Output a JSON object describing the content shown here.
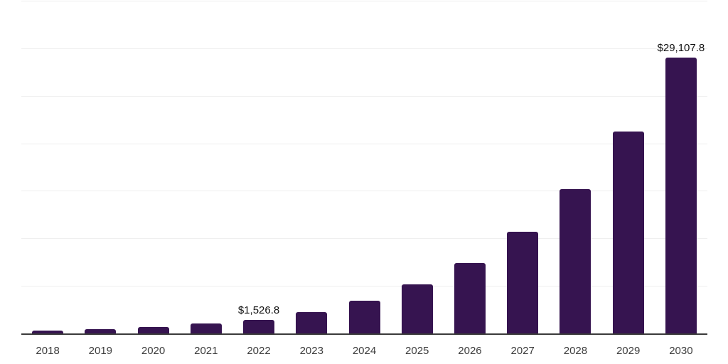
{
  "chart_data": {
    "type": "bar",
    "title": "",
    "xlabel": "",
    "ylabel": "",
    "categories": [
      "2018",
      "2019",
      "2020",
      "2021",
      "2022",
      "2023",
      "2024",
      "2025",
      "2026",
      "2027",
      "2028",
      "2029",
      "2030"
    ],
    "values": [
      370,
      560,
      750,
      1090,
      1526.8,
      2320,
      3520,
      5230,
      7480,
      10790,
      15260,
      21310,
      29107.8
    ],
    "labeled_values": {
      "2022": 1526.8,
      "2030": 29107.8
    },
    "data_labels": {
      "2022": "$1,526.8",
      "2030": "$29,107.8"
    },
    "ylim": [
      0,
      35000
    ],
    "gridline_step": 5000,
    "grid": true,
    "legend": false,
    "currency_prefix": "$",
    "colors": {
      "bar": "#361450",
      "gridline": "#efefef",
      "axis_line": "#3a3a3a",
      "tick_label": "#3d3d3d",
      "data_label": "#111111",
      "background": "#ffffff"
    }
  }
}
